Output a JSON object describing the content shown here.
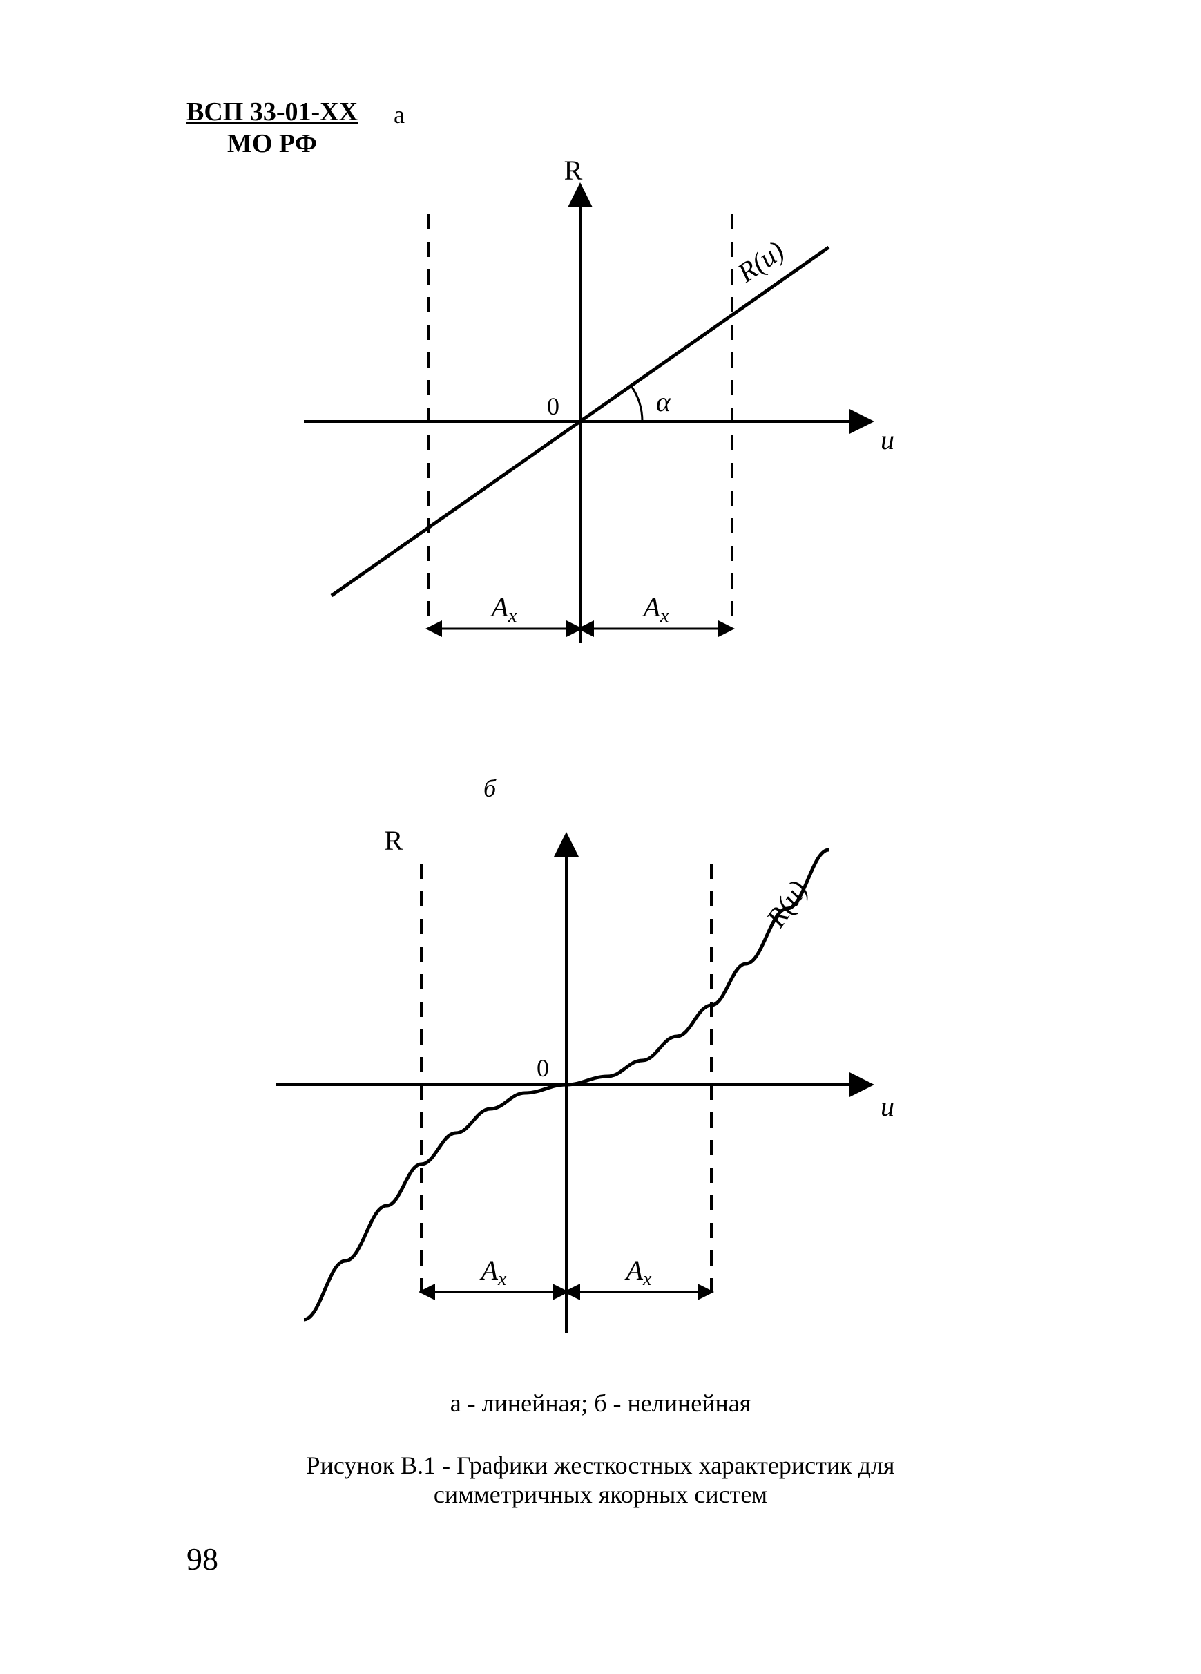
{
  "header": {
    "doc_code": "ВСП 33-01-ХХ",
    "org": "МО РФ"
  },
  "panel_labels": {
    "a": "а",
    "b": "б"
  },
  "diagram_a": {
    "type": "line",
    "y_axis_label": "R",
    "x_axis_label": "u",
    "origin_label": "0",
    "angle_label": "α",
    "curve_label": "R(u)",
    "dim_label_left": "Aₓ",
    "dim_label_right": "Aₓ",
    "line_slope_deg": 35,
    "x_range": [
      -400,
      420
    ],
    "y_range": [
      -320,
      340
    ],
    "dashed_x": [
      -220,
      220
    ],
    "stroke_color": "#000000",
    "background_color": "#ffffff",
    "line_width": 5,
    "dash_pattern": "22 18",
    "label_fontsize": 40
  },
  "diagram_b": {
    "type": "nonlinear-curve",
    "y_axis_label": "R",
    "x_axis_label": "u",
    "origin_label": "0",
    "curve_label": "R(u)",
    "dim_label_left": "Aₓ",
    "dim_label_right": "Aₓ",
    "curve_points": [
      [
        -380,
        340
      ],
      [
        -320,
        255
      ],
      [
        -260,
        175
      ],
      [
        -210,
        115
      ],
      [
        -160,
        70
      ],
      [
        -110,
        35
      ],
      [
        -60,
        12
      ],
      [
        0,
        0
      ],
      [
        60,
        -12
      ],
      [
        110,
        -35
      ],
      [
        160,
        -70
      ],
      [
        210,
        -115
      ],
      [
        260,
        -175
      ],
      [
        320,
        -255
      ],
      [
        380,
        -340
      ]
    ],
    "x_range": [
      -420,
      440
    ],
    "y_range": [
      -360,
      360
    ],
    "dashed_x": [
      -210,
      210
    ],
    "stroke_color": "#000000",
    "background_color": "#ffffff",
    "line_width": 5,
    "dash_pattern": "22 18",
    "label_fontsize": 40
  },
  "legend_text": "а - линейная; б - нелинейная",
  "caption_line1": "Рисунок В.1 - Графики жесткостных характеристик для",
  "caption_line2": "симметричных якорных систем",
  "page_number": "98"
}
